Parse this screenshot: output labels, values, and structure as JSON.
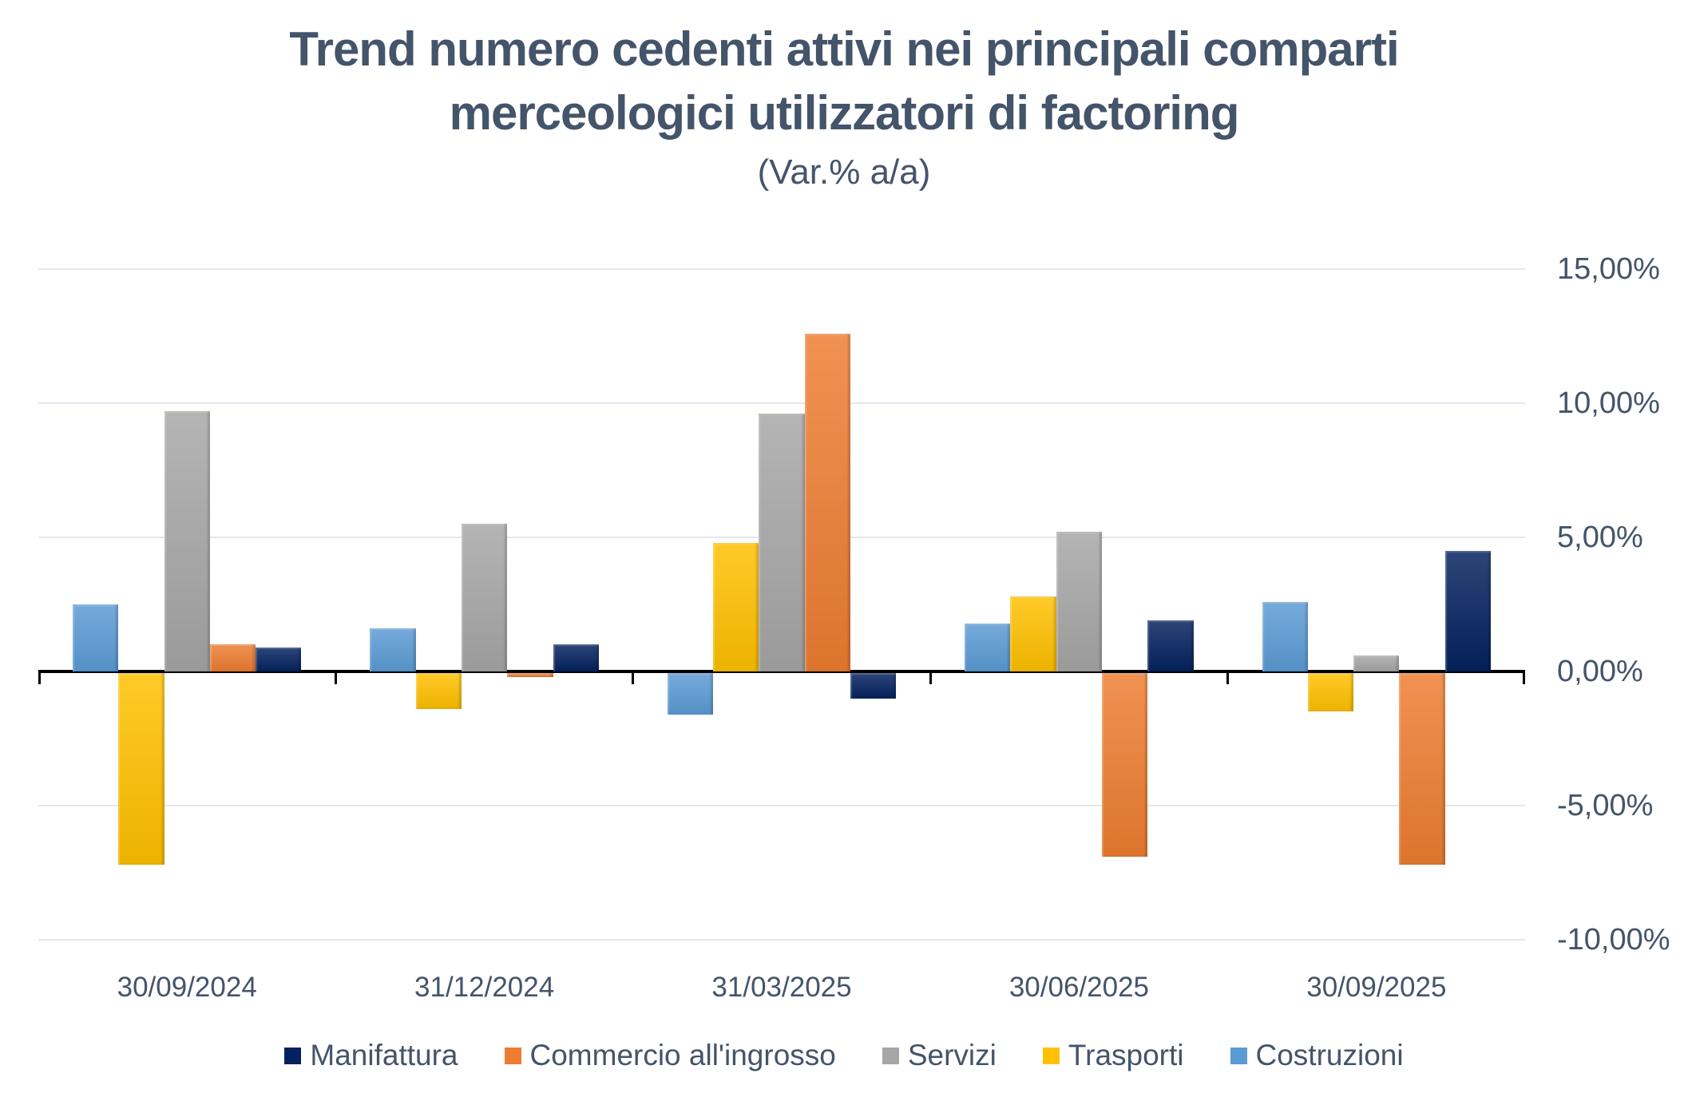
{
  "header": {
    "title_line1": "Trend numero cedenti attivi nei principali comparti",
    "title_line2": "merceologici utilizzatori di factoring",
    "subtitle": "(Var.% a/a)"
  },
  "chart_data": {
    "type": "bar",
    "title": "Trend numero cedenti attivi nei principali comparti merceologici utilizzatori di factoring",
    "subtitle": "(Var.% a/a)",
    "categories": [
      "30/09/2024",
      "31/12/2024",
      "31/03/2025",
      "30/06/2025",
      "30/09/2025"
    ],
    "series": [
      {
        "name": "Costruzioni",
        "color": "#5B9BD5",
        "values": [
          2.5,
          1.6,
          -1.6,
          1.8,
          2.6
        ]
      },
      {
        "name": "Trasporti",
        "color": "#FFC000",
        "values": [
          -7.2,
          -1.4,
          4.8,
          2.8,
          -1.5
        ]
      },
      {
        "name": "Servizi",
        "color": "#A6A6A6",
        "values": [
          9.7,
          5.5,
          9.6,
          5.2,
          0.6
        ]
      },
      {
        "name": "Commercio all'ingrosso",
        "color": "#ED7D31",
        "values": [
          1.0,
          -0.2,
          12.6,
          -6.9,
          -7.2
        ]
      },
      {
        "name": "Manifattura",
        "color": "#04225F",
        "values": [
          0.9,
          1.0,
          -1.0,
          1.9,
          4.5
        ]
      }
    ],
    "legend_order": [
      "Manifattura",
      "Commercio all'ingrosso",
      "Servizi",
      "Trasporti",
      "Costruzioni"
    ],
    "ylim": [
      -10,
      15
    ],
    "yticks": [
      {
        "value": 15,
        "label": "15,00%"
      },
      {
        "value": 10,
        "label": "10,00%"
      },
      {
        "value": 5,
        "label": "5,00%"
      },
      {
        "value": 0,
        "label": "0,00%"
      },
      {
        "value": -5,
        "label": "-5,00%"
      },
      {
        "value": -10,
        "label": "-10,00%"
      }
    ],
    "grid": true,
    "legend_position": "bottom",
    "xlabel": "",
    "ylabel": ""
  },
  "colors": {
    "text": "#44546A",
    "gridline": "#E2E7EE",
    "axis": "#000000"
  }
}
